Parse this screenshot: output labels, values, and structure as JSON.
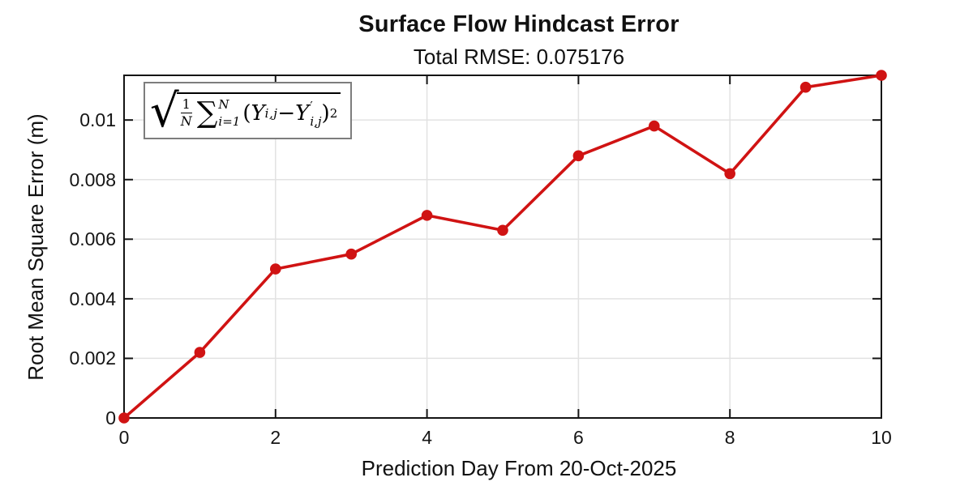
{
  "chart_data": {
    "type": "line",
    "title": "Surface Flow Hindcast Error",
    "subtitle": "Total RMSE: 0.075176",
    "xlabel": "Prediction Day From 20-Oct-2025",
    "ylabel": "Root Mean Square Error (m)",
    "x": [
      0,
      1,
      2,
      3,
      4,
      5,
      6,
      7,
      8,
      9,
      10
    ],
    "series": [
      {
        "name": "RMSE",
        "values": [
          0.0,
          0.0022,
          0.005,
          0.0055,
          0.0068,
          0.0063,
          0.0088,
          0.0098,
          0.0082,
          0.0111,
          0.0115
        ]
      }
    ],
    "xlim": [
      0,
      10
    ],
    "ylim": [
      0,
      0.0115
    ],
    "xticks": [
      0,
      2,
      4,
      6,
      8,
      10
    ],
    "xtick_labels": [
      "0",
      "2",
      "4",
      "6",
      "8",
      "10"
    ],
    "yticks": [
      0,
      0.002,
      0.004,
      0.006,
      0.008,
      0.01
    ],
    "ytick_labels": [
      "0",
      "0.002",
      "0.004",
      "0.006",
      "0.008",
      "0.01"
    ],
    "grid": true,
    "legend": "none",
    "marker": "filled-circle",
    "annotation_formula": "sqrt((1/N) * sum_{i=1}^{N} (Y_ij - Y'_ij)^2)"
  },
  "formula": {
    "radical": "√",
    "frac_num": "1",
    "frac_den": "N",
    "sum_symbol": "∑",
    "sum_sup": "N",
    "sum_sub": "i=1",
    "open_paren": "(",
    "y_var": "Y",
    "y_sub": "i,j",
    "minus": " − ",
    "y2_var": "Y",
    "prime": "′",
    "y2_sub": "i,j",
    "close_paren": ")",
    "exponent": "2"
  },
  "colors": {
    "line": "#d01313",
    "marker": "#d01313",
    "grid": "#e2e2e2",
    "axis": "#141414",
    "tick": "#141414",
    "formula_border": "#7d7d7d",
    "background": "#ffffff"
  }
}
